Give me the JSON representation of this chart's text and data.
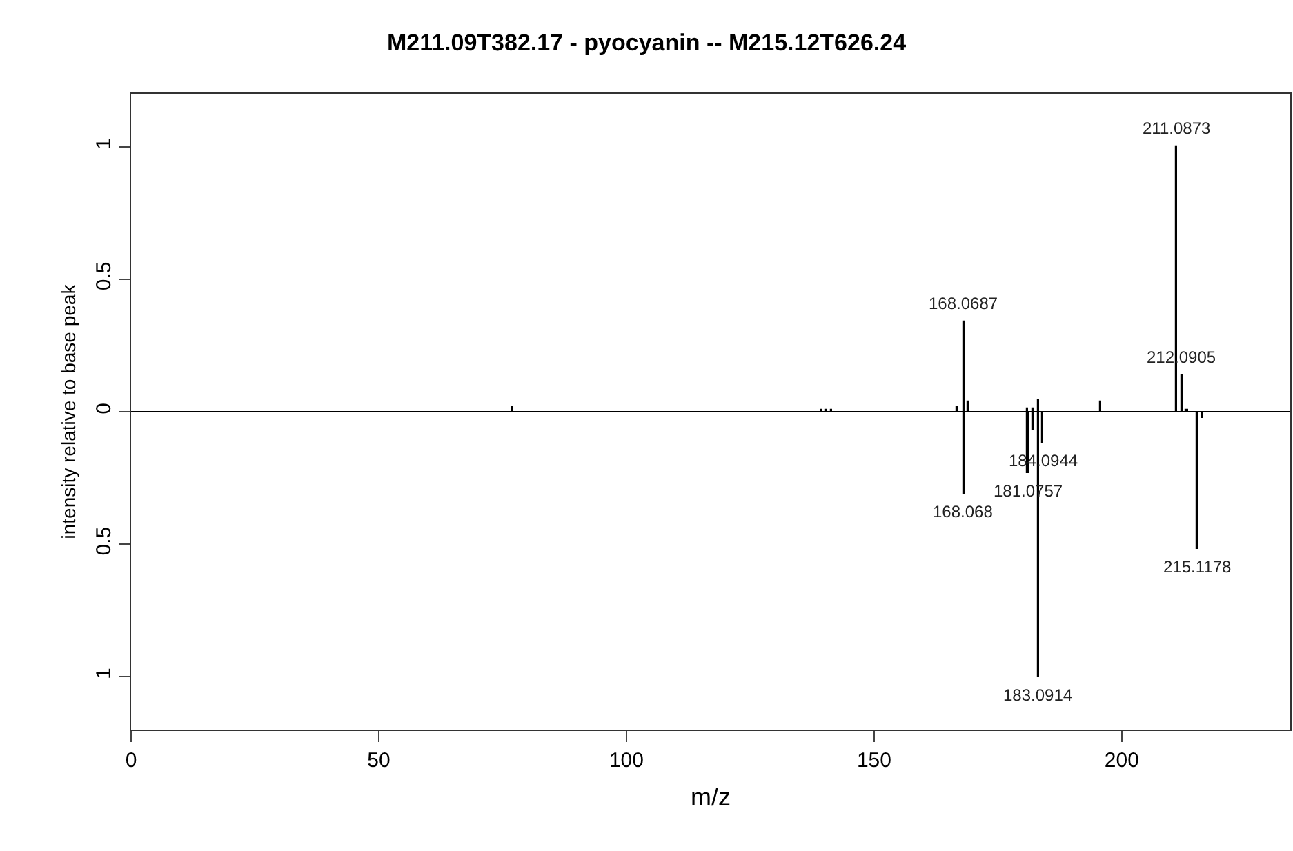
{
  "chart_data": {
    "type": "bar",
    "title": "M211.09T382.17 - pyocyanin -- M215.12T626.24",
    "xlabel": "m/z",
    "ylabel": "intensity relative to base peak",
    "series": [
      {
        "color": "#000000",
        "x": [
          76.9,
          139.5,
          140.3,
          141.4,
          166.6,
          168.0687,
          169.0,
          181.0,
          182.0,
          183.0914,
          195.6,
          211.0873,
          212.0905,
          213.1
        ],
        "values": [
          0.02,
          0.01,
          0.01,
          0.01,
          0.02,
          0.34,
          0.04,
          0.015,
          0.015,
          0.045,
          0.04,
          1.0,
          0.14,
          0.01
        ]
      },
      {
        "color": "#000000",
        "x": [
          168.068,
          181.0757,
          182.1,
          183.0914,
          184.0944,
          215.1178,
          216.2
        ],
        "values": [
          -0.31,
          -0.23,
          -0.07,
          -1.0,
          -0.115,
          -0.52,
          -0.025
        ]
      }
    ],
    "annotations": [
      {
        "text": "168.0687",
        "x": 168.0687,
        "y": 0.34
      },
      {
        "text": "211.0873",
        "x": 211.0873,
        "y": 1.0
      },
      {
        "text": "212.0905",
        "x": 212.0905,
        "y": 0.14
      },
      {
        "text": "168.068",
        "x": 168.068,
        "y": -0.31
      },
      {
        "text": "181.0757",
        "x": 181.0757,
        "y": -0.23
      },
      {
        "text": "183.0914",
        "x": 183.0914,
        "y": -1.0
      },
      {
        "text": "184.0944",
        "x": 184.0944,
        "y": -0.115
      },
      {
        "text": "215.1178",
        "x": 215.1178,
        "y": -0.52
      }
    ],
    "xlim": [
      0,
      234
    ],
    "xticks": [
      0,
      50,
      100,
      150,
      200
    ],
    "ylim": [
      -1.2,
      1.2
    ],
    "yticks": [
      {
        "value": -1,
        "label": "1"
      },
      {
        "value": -0.5,
        "label": "0.5"
      },
      0,
      0.5,
      1
    ],
    "ref_lines": [
      {
        "axis": "y",
        "value": 0,
        "color": "#000000"
      }
    ]
  }
}
